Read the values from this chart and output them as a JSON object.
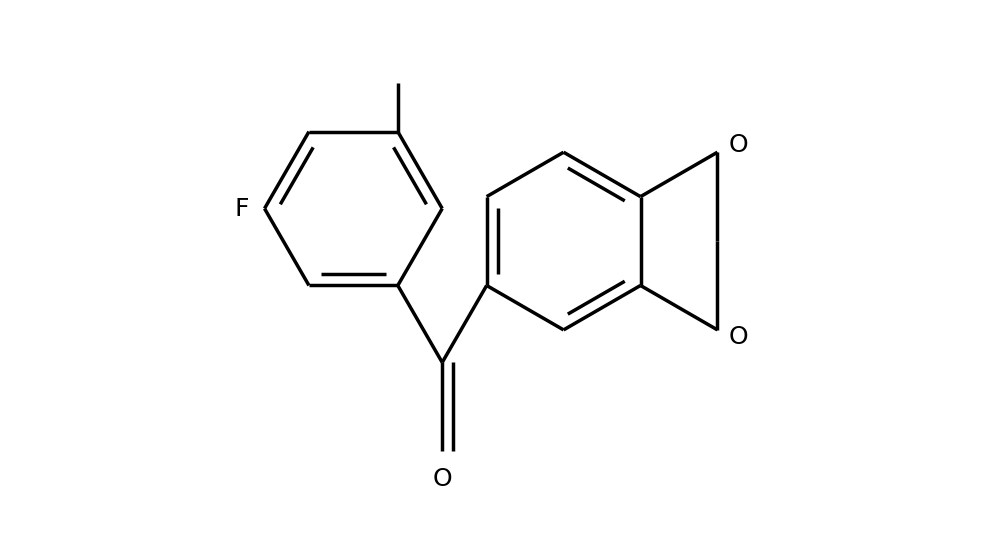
{
  "background_color": "#ffffff",
  "line_color": "#000000",
  "line_width": 2.5,
  "font_size_labels": 18,
  "label_F": "F",
  "label_O_top": "O",
  "label_O_bot": "O",
  "label_carbonyl": "O",
  "figsize": [
    9.82,
    5.34
  ],
  "dpi": 100
}
